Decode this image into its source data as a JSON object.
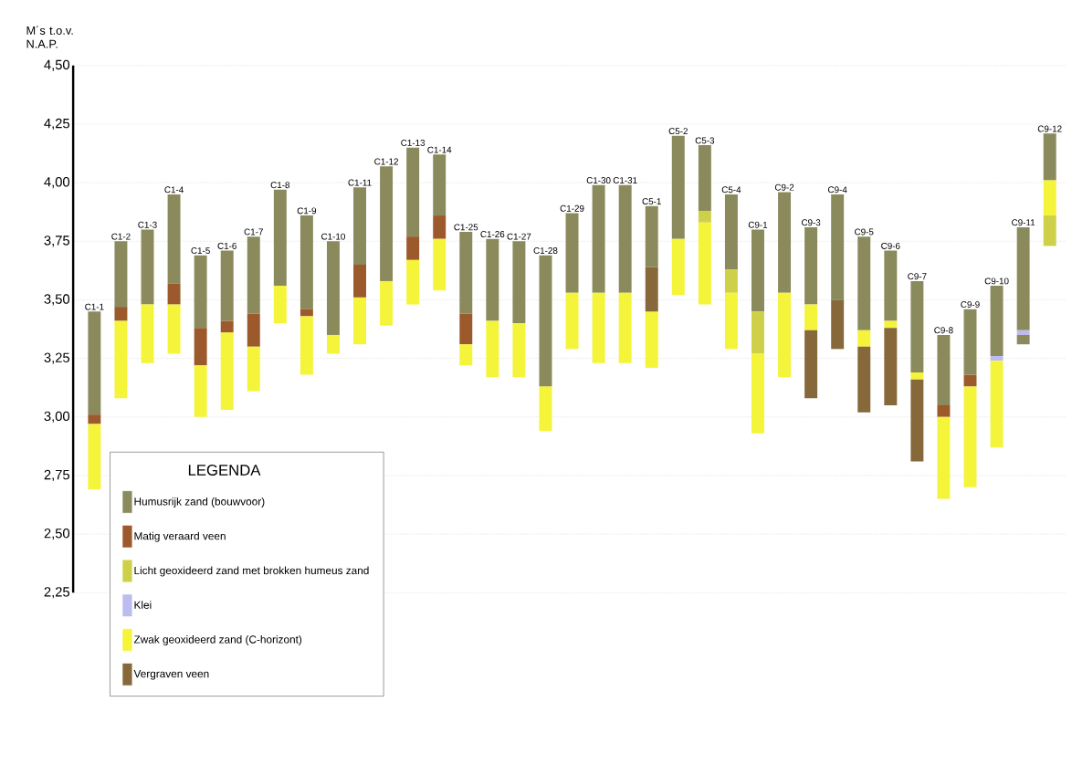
{
  "chart_data": {
    "type": "bar",
    "ylabel": "M´s t.o.v. N.A.P.",
    "legend_title": "LEGENDA",
    "legend": "bottom left",
    "grid": "y",
    "ylim": [
      2.25,
      4.5
    ],
    "yticks": [
      {
        "value": 2.25,
        "label": "2,25"
      },
      {
        "value": 2.5,
        "label": "2,50"
      },
      {
        "value": 2.75,
        "label": "2,75"
      },
      {
        "value": 3.0,
        "label": "3,00"
      },
      {
        "value": 3.25,
        "label": "3,25"
      },
      {
        "value": 3.5,
        "label": "3,50"
      },
      {
        "value": 3.75,
        "label": "3,75"
      },
      {
        "value": 4.0,
        "label": "4,00"
      },
      {
        "value": 4.25,
        "label": "4,25"
      },
      {
        "value": 4.5,
        "label": "4,50"
      }
    ],
    "categories": [
      "C1-1",
      "C1-2",
      "C1-3",
      "C1-4",
      "C1-5",
      "C1-6",
      "C1-7",
      "C1-8",
      "C1-9",
      "C1-10",
      "C1-11",
      "C1-12",
      "C1-13",
      "C1-14",
      "C1-25",
      "C1-26",
      "C1-27",
      "C1-28",
      "C1-29",
      "C1-30",
      "C1-31",
      "C5-1",
      "C5-2",
      "C5-3",
      "C5-4",
      "C9-1",
      "C9-2",
      "C9-3",
      "C9-4",
      "C9-5",
      "C9-6",
      "C9-7",
      "C9-8",
      "C9-9",
      "C9-10",
      "C9-11",
      "C9-12"
    ],
    "series": [
      {
        "name": "Humusrijk zand (bouwvoor)",
        "color": "#8b8a5c",
        "base": [
          3.01,
          3.47,
          3.48,
          3.57,
          3.38,
          3.41,
          3.44,
          3.56,
          3.46,
          3.35,
          3.65,
          3.58,
          3.77,
          3.86,
          3.44,
          3.41,
          3.4,
          3.13,
          3.53,
          3.53,
          3.53,
          3.64,
          3.76,
          3.88,
          3.63,
          3.45,
          3.53,
          3.48,
          3.5,
          3.37,
          3.41,
          3.19,
          3.05,
          3.18,
          3.26,
          3.37,
          4.01
        ],
        "values": [
          0.44,
          0.28,
          0.32,
          0.38,
          0.31,
          0.3,
          0.33,
          0.41,
          0.4,
          0.4,
          0.33,
          0.49,
          0.38,
          0.26,
          0.35,
          0.35,
          0.35,
          0.56,
          0.34,
          0.46,
          0.46,
          0.26,
          0.44,
          0.28,
          0.32,
          0.35,
          0.43,
          0.33,
          0.45,
          0.4,
          0.3,
          0.39,
          0.3,
          0.28,
          0.3,
          0.44,
          0.2
        ]
      },
      {
        "name": "Matig veraard veen",
        "color": "#9c5a2c",
        "base": [
          2.97,
          3.41,
          null,
          3.48,
          3.22,
          3.36,
          3.3,
          null,
          3.43,
          null,
          3.51,
          null,
          3.67,
          3.76,
          3.31,
          null,
          null,
          null,
          null,
          null,
          null,
          null,
          null,
          null,
          null,
          null,
          null,
          null,
          null,
          null,
          null,
          null,
          3.0,
          3.13,
          null,
          null,
          null
        ],
        "values": [
          0.04,
          0.06,
          null,
          0.09,
          0.16,
          0.05,
          0.14,
          null,
          0.03,
          null,
          0.14,
          null,
          0.1,
          0.1,
          0.13,
          null,
          null,
          null,
          null,
          null,
          null,
          null,
          null,
          null,
          null,
          null,
          null,
          null,
          null,
          null,
          null,
          null,
          0.05,
          0.05,
          null,
          null,
          null
        ]
      },
      {
        "name": "Licht geoxideerd zand met brokken humeus zand",
        "color": "#cfd04a",
        "base": [
          null,
          null,
          null,
          null,
          null,
          null,
          null,
          null,
          null,
          null,
          null,
          null,
          null,
          null,
          null,
          null,
          null,
          null,
          null,
          null,
          null,
          null,
          null,
          3.83,
          3.53,
          3.27,
          null,
          null,
          null,
          null,
          null,
          null,
          null,
          null,
          null,
          null,
          3.73
        ],
        "values": [
          null,
          null,
          null,
          null,
          null,
          null,
          null,
          null,
          null,
          null,
          null,
          null,
          null,
          null,
          null,
          null,
          null,
          null,
          null,
          null,
          null,
          null,
          null,
          0.05,
          0.1,
          0.18,
          null,
          null,
          null,
          null,
          null,
          null,
          null,
          null,
          null,
          null,
          0.13
        ]
      },
      {
        "name": "Klei",
        "color": "#bcbcf0",
        "base": [
          null,
          null,
          null,
          null,
          null,
          null,
          null,
          null,
          null,
          null,
          null,
          null,
          null,
          null,
          null,
          null,
          null,
          null,
          null,
          null,
          null,
          null,
          null,
          null,
          null,
          null,
          null,
          null,
          null,
          null,
          null,
          null,
          null,
          null,
          3.24,
          3.35,
          null
        ],
        "values": [
          null,
          null,
          null,
          null,
          null,
          null,
          null,
          null,
          null,
          null,
          null,
          null,
          null,
          null,
          null,
          null,
          null,
          null,
          null,
          null,
          null,
          null,
          null,
          null,
          null,
          null,
          null,
          null,
          null,
          null,
          null,
          null,
          null,
          null,
          0.02,
          0.02,
          null
        ]
      },
      {
        "name": "Zwak geoxideerd zand (C-horizont)",
        "color": "#f4f43a",
        "base": [
          2.69,
          3.08,
          3.23,
          3.27,
          3.0,
          3.03,
          3.11,
          3.4,
          3.18,
          3.27,
          3.31,
          3.39,
          3.48,
          3.54,
          3.22,
          3.17,
          3.17,
          2.94,
          3.29,
          3.23,
          3.23,
          3.21,
          3.52,
          3.48,
          3.29,
          2.93,
          3.17,
          3.37,
          null,
          3.3,
          3.38,
          3.16,
          2.65,
          2.7,
          2.87,
          null,
          3.86
        ],
        "values": [
          0.28,
          0.33,
          0.25,
          0.21,
          0.22,
          0.33,
          0.19,
          0.16,
          0.25,
          0.08,
          0.2,
          0.19,
          0.19,
          0.22,
          0.09,
          0.24,
          0.23,
          0.19,
          0.24,
          0.3,
          0.3,
          0.24,
          0.24,
          0.35,
          0.24,
          0.34,
          0.36,
          0.11,
          null,
          0.07,
          0.03,
          0.03,
          0.35,
          0.43,
          0.37,
          null,
          0.15
        ]
      },
      {
        "name": "Vergraven veen",
        "color": "#86683a",
        "base": [
          null,
          null,
          null,
          null,
          null,
          null,
          null,
          null,
          null,
          null,
          null,
          null,
          null,
          null,
          null,
          null,
          null,
          null,
          null,
          null,
          null,
          3.45,
          null,
          null,
          null,
          null,
          null,
          3.08,
          3.29,
          3.02,
          3.05,
          2.81,
          null,
          null,
          null,
          null,
          null
        ],
        "values": [
          null,
          null,
          null,
          null,
          null,
          null,
          null,
          null,
          null,
          null,
          null,
          null,
          null,
          null,
          null,
          null,
          null,
          null,
          null,
          null,
          null,
          0.19,
          null,
          null,
          null,
          null,
          null,
          0.29,
          0.21,
          0.28,
          0.33,
          0.35,
          null,
          null,
          null,
          null,
          null
        ]
      },
      {
        "color": "#8b8a5c",
        "base": [
          null,
          null,
          null,
          null,
          null,
          null,
          null,
          null,
          null,
          null,
          null,
          null,
          null,
          null,
          null,
          null,
          null,
          null,
          null,
          null,
          null,
          null,
          null,
          null,
          null,
          null,
          null,
          null,
          null,
          null,
          null,
          null,
          null,
          null,
          null,
          3.31,
          null
        ],
        "values": [
          null,
          null,
          null,
          null,
          null,
          null,
          null,
          null,
          null,
          null,
          null,
          null,
          null,
          null,
          null,
          null,
          null,
          null,
          null,
          null,
          null,
          null,
          null,
          null,
          null,
          null,
          null,
          null,
          null,
          null,
          null,
          null,
          null,
          null,
          null,
          0.04,
          null
        ]
      }
    ]
  }
}
